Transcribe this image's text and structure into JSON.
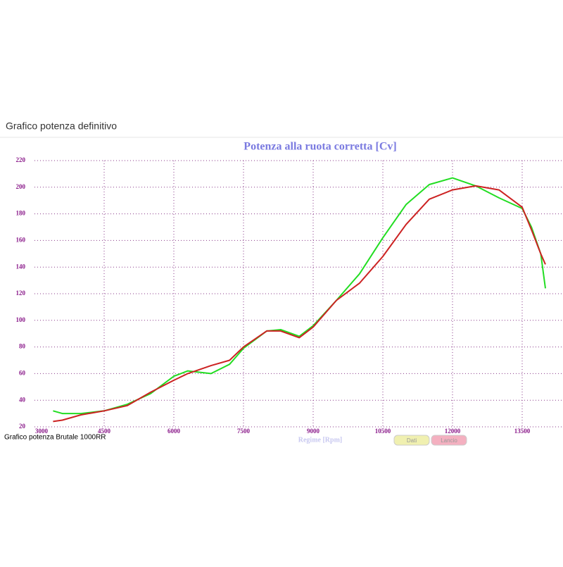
{
  "header": {
    "title": "Grafico potenza definitivo"
  },
  "footer": {
    "caption": "Grafico potenza Brutale 1000RR"
  },
  "buttons": [
    {
      "label": "Dati",
      "color": "#f0f0b0"
    },
    {
      "label": "Lancio",
      "color": "#f4b0c0"
    }
  ],
  "chart_data": {
    "type": "line",
    "title": "Potenza alla ruota corretta [Cv]",
    "x_label": "Regime [Rpm]",
    "xlim": [
      3000,
      14400
    ],
    "ylim": [
      20,
      220
    ],
    "xticks": [
      3000,
      4500,
      6000,
      7500,
      9000,
      10500,
      12000,
      13500
    ],
    "yticks": [
      20,
      40,
      60,
      80,
      100,
      120,
      140,
      160,
      180,
      200,
      220
    ],
    "grid": true,
    "series": [
      {
        "color": "#22dd22",
        "x": [
          3400,
          3600,
          4000,
          4500,
          5000,
          5500,
          6000,
          6300,
          6800,
          7200,
          7500,
          8000,
          8300,
          8700,
          9000,
          9500,
          10000,
          10500,
          11000,
          11500,
          12000,
          12500,
          13000,
          13500,
          13700,
          13900,
          14000
        ],
        "values": [
          32,
          30,
          30,
          32,
          37,
          45,
          58,
          62,
          60,
          67,
          79,
          92,
          93,
          88,
          96,
          115,
          135,
          162,
          187,
          202,
          207,
          201,
          192,
          184,
          170,
          150,
          124
        ]
      },
      {
        "color": "#cc2222",
        "x": [
          3400,
          3600,
          4000,
          4500,
          5000,
          5500,
          6000,
          6300,
          6800,
          7200,
          7500,
          8000,
          8300,
          8700,
          9000,
          9500,
          10000,
          10500,
          11000,
          11500,
          12000,
          12500,
          13000,
          13500,
          13700,
          13900,
          14000
        ],
        "values": [
          24,
          25,
          29,
          32,
          36,
          46,
          55,
          60,
          66,
          70,
          80,
          92,
          92,
          87,
          95,
          115,
          128,
          148,
          172,
          191,
          198,
          201,
          198,
          185,
          168,
          150,
          142
        ]
      }
    ]
  }
}
